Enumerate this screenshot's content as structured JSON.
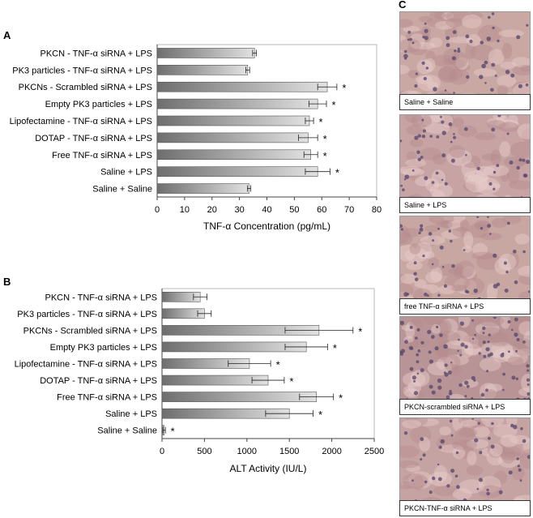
{
  "chart_data": [
    {
      "panel": "A",
      "type": "bar",
      "orientation": "horizontal",
      "categories": [
        "PKCN - TNF-α siRNA + LPS",
        "PK3 particles - TNF-α siRNA + LPS",
        "PKCNs - Scrambled siRNA + LPS",
        "Empty PK3 particles + LPS",
        "Lipofectamine - TNF-α siRNA + LPS",
        "DOTAP - TNF-α siRNA + LPS",
        "Free TNF-α siRNA + LPS",
        "Saline + LPS",
        "Saline + Saline"
      ],
      "values": [
        35.5,
        33,
        62,
        58.5,
        55.5,
        55,
        56,
        58.5,
        33.5
      ],
      "errors": [
        0.7,
        0.7,
        3.5,
        3.2,
        1.5,
        3.5,
        2.5,
        4.5,
        0.6
      ],
      "significant": [
        false,
        false,
        true,
        true,
        true,
        true,
        true,
        true,
        false
      ],
      "star_label": "*",
      "xlabel": "TNF-α Concentration (pg/mL)",
      "xlim": [
        0,
        80
      ],
      "xticks": [
        0,
        10,
        20,
        30,
        40,
        50,
        60,
        70,
        80
      ]
    },
    {
      "panel": "B",
      "type": "bar",
      "orientation": "horizontal",
      "categories": [
        "PKCN - TNF-α siRNA + LPS",
        "PK3 particles - TNF-α siRNA + LPS",
        "PKCNs - Scrambled siRNA + LPS",
        "Empty PK3 particles + LPS",
        "Lipofectamine - TNF-α siRNA + LPS",
        "DOTAP - TNF-α siRNA + LPS",
        "Free TNF-α siRNA + LPS",
        "Saline + LPS",
        "Saline + Saline"
      ],
      "values": [
        450,
        500,
        1850,
        1700,
        1030,
        1250,
        1820,
        1500,
        25
      ],
      "errors": [
        80,
        80,
        400,
        250,
        250,
        190,
        200,
        280,
        15
      ],
      "significant": [
        false,
        false,
        true,
        true,
        true,
        true,
        true,
        true,
        true
      ],
      "star_label": "*",
      "xlabel": "ALT Activity (IU/L)",
      "xlim": [
        0,
        2500
      ],
      "xticks": [
        0,
        500,
        1000,
        1500,
        2000,
        2500
      ]
    }
  ],
  "panel_c": {
    "letter": "C",
    "captions": [
      "Saline + Saline",
      "Saline + LPS",
      "free TNF-α siRNA + LPS",
      "PKCN-scrambled siRNA + LPS",
      "PKCN-TNF-α siRNA  + LPS"
    ],
    "tissue_colors": [
      "#c9a7a3",
      "#c7a3a4",
      "#c8a6a2",
      "#b99496",
      "#c6a3a3"
    ]
  },
  "colors": {
    "bar_dark": "#6e6e6e",
    "bar_light": "#e2e2e2",
    "axis": "#444444",
    "nucleus": "#5a4a6e"
  }
}
